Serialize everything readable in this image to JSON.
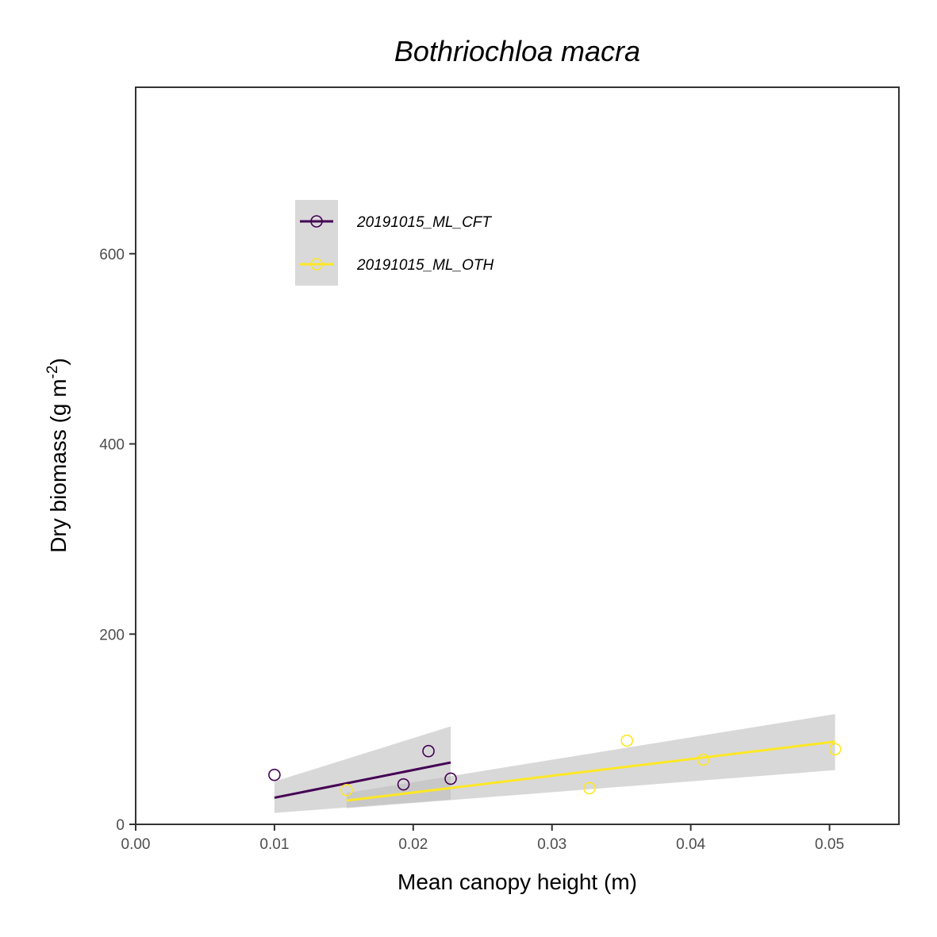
{
  "chart_data": {
    "type": "scatter",
    "title": "Bothriochloa macra",
    "xlabel": "Mean canopy height (m)",
    "ylabel": {
      "main": "Dry biomass (g m",
      "superscript": "-2",
      "close": ")"
    },
    "xlim": [
      0,
      0.055
    ],
    "ylim": [
      0,
      775
    ],
    "x_ticks": [
      0.0,
      0.01,
      0.02,
      0.03,
      0.04,
      0.05
    ],
    "x_tick_labels": [
      "0.00",
      "0.01",
      "0.02",
      "0.03",
      "0.04",
      "0.05"
    ],
    "y_ticks": [
      0,
      200,
      400,
      600
    ],
    "y_tick_labels": [
      "0",
      "200",
      "400",
      "600"
    ],
    "grid": false,
    "legend_position": "top-left, inside plot",
    "band_color": "#bebebe",
    "series": [
      {
        "name": "20191015_ML_CFT",
        "color": "#440154",
        "points": [
          {
            "x": 0.01,
            "y": 52
          },
          {
            "x": 0.0193,
            "y": 42
          },
          {
            "x": 0.0211,
            "y": 77
          },
          {
            "x": 0.0227,
            "y": 48
          }
        ],
        "fit": {
          "x": [
            0.01,
            0.0227
          ],
          "y": [
            28,
            65
          ]
        },
        "ci_lower": [
          12,
          26
        ],
        "ci_upper": [
          45,
          103
        ]
      },
      {
        "name": "20191015_ML_OTH",
        "color": "#FDE725",
        "points": [
          {
            "x": 0.0152,
            "y": 36
          },
          {
            "x": 0.0327,
            "y": 38
          },
          {
            "x": 0.0354,
            "y": 88
          },
          {
            "x": 0.0409,
            "y": 68
          },
          {
            "x": 0.0504,
            "y": 79
          }
        ],
        "fit": {
          "x": [
            0.0152,
            0.0504
          ],
          "y": [
            25,
            87
          ]
        },
        "ci_lower": [
          17,
          57
        ],
        "ci_upper": [
          33,
          116
        ]
      }
    ]
  }
}
